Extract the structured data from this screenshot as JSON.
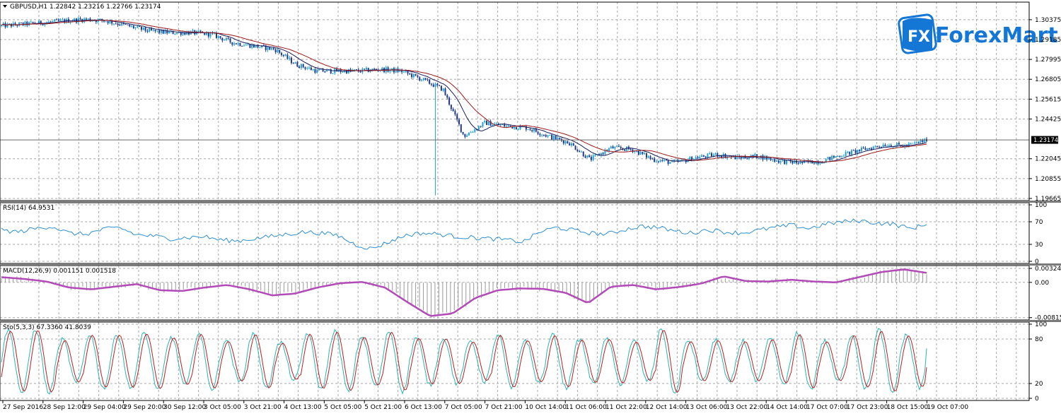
{
  "colors": {
    "bull": "#1ea0d8",
    "bear": "#1f3a8c",
    "ma_fast": "#1b1b5a",
    "ma_slow": "#a01818",
    "rsi": "#2f8fcf",
    "macd_hist": "#9a9a9a",
    "macd_signal": "#b24bb8",
    "sto_main": "#27b5b5",
    "sto_signal": "#c01c1c",
    "current_price_bg": "#000000",
    "logo_blue": "#1477d6"
  },
  "logo": {
    "text": "ForexMart",
    "mark": "FX"
  },
  "chart_data": [
    {
      "type": "candlestick",
      "title": "GBPUSD,H1  1.22842 1.23216 1.22766 1.23174",
      "symbol": "GBPUSD",
      "timeframe": "H1",
      "ohlc_last": {
        "open": 1.22842,
        "high": 1.23216,
        "low": 1.22766,
        "close": 1.23174
      },
      "current_price": "1.23174",
      "ylim": [
        1.19665,
        1.313
      ],
      "y_ticks": [
        "1.30375",
        "1.29185",
        "1.27995",
        "1.26805",
        "1.25615",
        "1.24425",
        "1.22045",
        "1.20855",
        "1.19665"
      ],
      "x_ticks": [
        "27 Sep 2016",
        "28 Sep 12:00",
        "29 Sep 04:00",
        "29 Sep 20:00",
        "30 Sep 12:00",
        "3 Oct 05:00",
        "3 Oct 21:00",
        "4 Oct 13:00",
        "5 Oct 05:00",
        "5 Oct 21:00",
        "6 Oct 13:00",
        "7 Oct 05:00",
        "7 Oct 21:00",
        "10 Oct 14:00",
        "11 Oct 06:00",
        "11 Oct 22:00",
        "12 Oct 14:00",
        "13 Oct 06:00",
        "13 Oct 22:00",
        "14 Oct 14:00",
        "17 Oct 07:00",
        "17 Oct 23:00",
        "18 Oct 15:00",
        "19 Oct 07:00"
      ],
      "price_path": [
        1.3,
        1.301,
        1.302,
        1.303,
        1.304,
        1.303,
        1.3,
        1.297,
        1.296,
        1.296,
        1.295,
        1.29,
        1.288,
        1.286,
        1.277,
        1.273,
        1.273,
        1.273,
        1.274,
        1.273,
        1.268,
        1.262,
        1.234,
        1.242,
        1.24,
        1.239,
        1.234,
        1.23,
        1.22,
        1.227,
        1.226,
        1.22,
        1.218,
        1.221,
        1.223,
        1.221,
        1.222,
        1.219,
        1.218,
        1.219,
        1.223,
        1.226,
        1.229,
        1.228,
        1.2317
      ],
      "grid": true,
      "moving_averages": 2
    },
    {
      "type": "line",
      "title": "RSI(14) 64.9531",
      "y_ticks": [
        "100",
        "70",
        "30",
        "0"
      ],
      "ylim": [
        0,
        100
      ],
      "values": [
        55,
        52,
        58,
        62,
        50,
        48,
        56,
        60,
        47,
        45,
        40,
        42,
        44,
        38,
        36,
        40,
        44,
        48,
        52,
        50,
        46,
        30,
        22,
        34,
        46,
        50,
        48,
        44,
        42,
        40,
        38,
        34,
        52,
        60,
        55,
        50,
        48,
        56,
        62,
        60,
        54,
        50,
        56,
        52,
        50,
        55,
        60,
        64,
        58,
        66,
        70,
        72,
        68,
        66,
        58,
        64.95
      ],
      "grid": true
    },
    {
      "type": "bar+line",
      "title": "MACD(12,26,9) 0.001151 0.001518",
      "y_ticks": [
        "0.00324",
        "0.00",
        "-0.008156"
      ],
      "ylim": [
        -0.0082,
        0.0034
      ],
      "signal": [
        0.0012,
        0.0008,
        0.0002,
        -0.0012,
        -0.0016,
        -0.001,
        -0.0004,
        -0.0018,
        -0.002,
        -0.0012,
        -0.0006,
        -0.0016,
        -0.003,
        -0.0026,
        -0.0012,
        -0.0002,
        0.0001,
        -0.0012,
        -0.0046,
        -0.0078,
        -0.0072,
        -0.0036,
        -0.0018,
        -0.0014,
        -0.0015,
        -0.0024,
        -0.0048,
        -0.001,
        -0.0006,
        -0.0016,
        -0.0011,
        -0.0003,
        0.0014,
        0.0003,
        0.0002,
        0.0006,
        0.0002,
        0.0,
        0.0012,
        0.0024,
        0.003,
        0.0022
      ],
      "histogram_note": "per-bar histogram",
      "grid": true
    },
    {
      "type": "line",
      "title": "Sto(5,3,3) 67.3360 41.8039",
      "y_ticks": [
        "100",
        "80",
        "20",
        "0"
      ],
      "ylim": [
        0,
        100
      ],
      "cycles": 34,
      "last_main": 67.336,
      "last_signal": 41.8039,
      "grid": true
    }
  ]
}
